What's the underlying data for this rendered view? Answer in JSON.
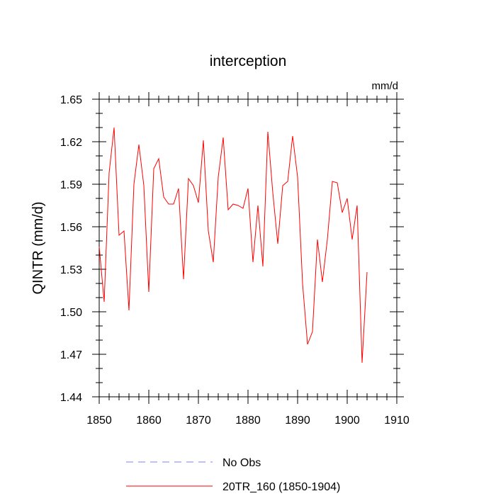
{
  "chart_data": {
    "type": "line",
    "title": "interception",
    "units_label": "mm/d",
    "xlabel": "",
    "ylabel": "QINTR  (mm/d)",
    "xlim": [
      1850,
      1910
    ],
    "ylim": [
      1.44,
      1.65
    ],
    "x_ticks": [
      "1850",
      "1860",
      "1870",
      "1880",
      "1890",
      "1900",
      "1910"
    ],
    "y_ticks": [
      "1.44",
      "1.47",
      "1.50",
      "1.53",
      "1.56",
      "1.59",
      "1.62",
      "1.65"
    ],
    "grid": false,
    "legend_position": "bottom",
    "series": [
      {
        "name": "No Obs",
        "color": "#8080ff",
        "style": "dashed",
        "x": [],
        "values": []
      },
      {
        "name": "20TR_160 (1850-1904)",
        "color": "#ff0000",
        "style": "solid",
        "x": [
          1850,
          1851,
          1852,
          1853,
          1854,
          1855,
          1856,
          1857,
          1858,
          1859,
          1860,
          1861,
          1862,
          1863,
          1864,
          1865,
          1866,
          1867,
          1868,
          1869,
          1870,
          1871,
          1872,
          1873,
          1874,
          1875,
          1876,
          1877,
          1878,
          1879,
          1880,
          1881,
          1882,
          1883,
          1884,
          1885,
          1886,
          1887,
          1888,
          1889,
          1890,
          1891,
          1892,
          1893,
          1894,
          1895,
          1896,
          1897,
          1898,
          1899,
          1900,
          1901,
          1902,
          1903,
          1904
        ],
        "values": [
          1.546,
          1.507,
          1.598,
          1.63,
          1.554,
          1.557,
          1.501,
          1.59,
          1.618,
          1.589,
          1.514,
          1.601,
          1.608,
          1.581,
          1.576,
          1.576,
          1.587,
          1.523,
          1.594,
          1.589,
          1.577,
          1.621,
          1.557,
          1.535,
          1.595,
          1.623,
          1.572,
          1.576,
          1.575,
          1.573,
          1.587,
          1.535,
          1.575,
          1.532,
          1.627,
          1.584,
          1.548,
          1.589,
          1.592,
          1.624,
          1.595,
          1.52,
          1.477,
          1.486,
          1.551,
          1.521,
          1.551,
          1.592,
          1.591,
          1.57,
          1.58,
          1.551,
          1.575,
          1.464,
          1.528
        ]
      }
    ]
  }
}
